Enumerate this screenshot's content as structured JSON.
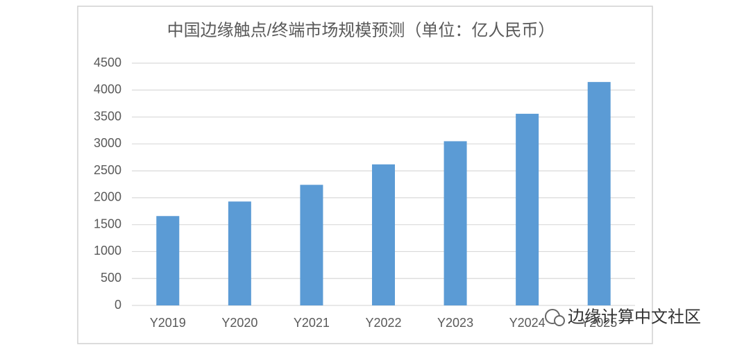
{
  "chart_data": {
    "type": "bar",
    "title": "中国边缘触点/终端市场规模预测（单位：亿人民币）",
    "categories": [
      "Y2019",
      "Y2020",
      "Y2021",
      "Y2022",
      "Y2023",
      "Y2024",
      "Y2025"
    ],
    "values": [
      1660,
      1930,
      2240,
      2620,
      3050,
      3560,
      4150
    ],
    "color": "#5b9bd5",
    "ylim": [
      0,
      4500
    ],
    "yticks": [
      0,
      500,
      1000,
      1500,
      2000,
      2500,
      3000,
      3500,
      4000,
      4500
    ],
    "grid": true,
    "watermark": "边缘计算中文社区"
  }
}
